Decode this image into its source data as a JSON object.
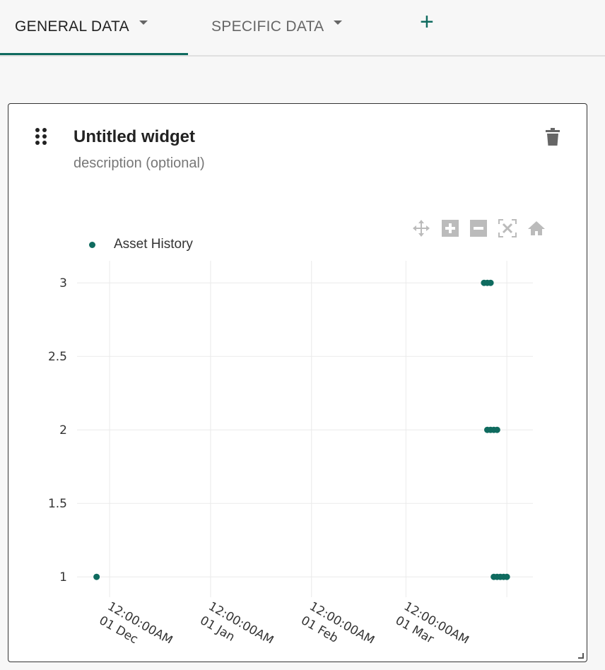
{
  "tabs": [
    {
      "label": "GENERAL DATA",
      "active": true
    },
    {
      "label": "SPECIFIC DATA",
      "active": false
    }
  ],
  "add_tab_icon": "plus-icon",
  "widget": {
    "title": "Untitled widget",
    "description": "description (optional)",
    "drag_icon": "drag-handle-icon",
    "delete_icon": "trash-icon"
  },
  "modebar": [
    "pan-icon",
    "zoom-in-icon",
    "zoom-out-icon",
    "autoscale-icon",
    "reset-axes-home-icon"
  ],
  "colors": {
    "accent": "#0f6b5f"
  },
  "chart_data": {
    "type": "scatter",
    "legend": {
      "entries": [
        "Asset History"
      ],
      "placement": "top-left"
    },
    "grid": true,
    "ylim": [
      0.9,
      3.15
    ],
    "yticks": [
      "1",
      "1.5",
      "2",
      "2.5",
      "3"
    ],
    "xticks": [
      {
        "date": "2023-12-01",
        "line1": "12:00:00AM",
        "line2": "01 Dec"
      },
      {
        "date": "2024-01-01",
        "line1": "12:00:00AM",
        "line2": "01 Jan"
      },
      {
        "date": "2024-02-01",
        "line1": "12:00:00AM",
        "line2": "01 Feb"
      },
      {
        "date": "2024-03-01",
        "line1": "12:00:00AM",
        "line2": "01 Mar"
      }
    ],
    "xlim": [
      "2023-11-21",
      "2024-04-09"
    ],
    "series": [
      {
        "name": "Asset History",
        "points": [
          [
            "2023-11-27",
            1
          ],
          [
            "2024-03-25",
            3
          ],
          [
            "2024-03-26",
            3
          ],
          [
            "2024-03-27",
            3
          ],
          [
            "2024-03-26",
            2
          ],
          [
            "2024-03-27",
            2
          ],
          [
            "2024-03-28",
            2
          ],
          [
            "2024-03-29",
            2
          ],
          [
            "2024-03-28",
            1
          ],
          [
            "2024-03-29",
            1
          ],
          [
            "2024-03-30",
            1
          ],
          [
            "2024-03-31",
            1
          ],
          [
            "2024-04-01",
            1
          ]
        ]
      }
    ]
  }
}
